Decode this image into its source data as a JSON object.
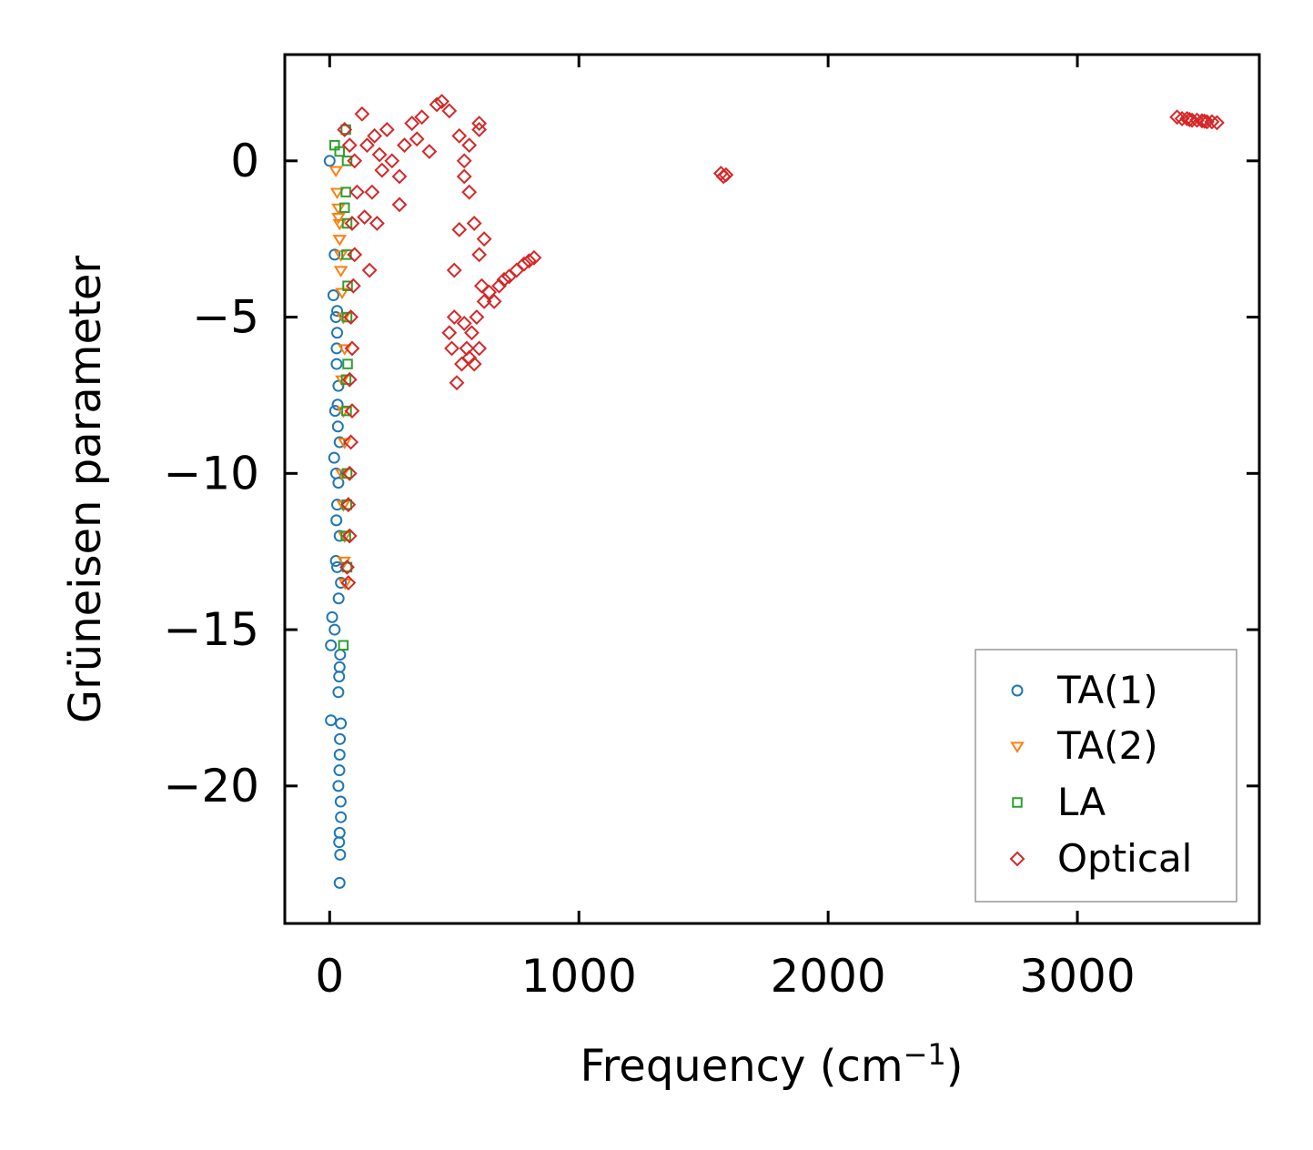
{
  "chart_data": {
    "type": "scatter",
    "title": "",
    "xlabel": "Frequency (cm",
    "xlabel_sup": "−1",
    "xlabel_close": ")",
    "ylabel": "Grüneisen parameter",
    "xlim": [
      -180,
      3730
    ],
    "ylim": [
      -24.4,
      3.4
    ],
    "xticks": [
      0,
      1000,
      2000,
      3000
    ],
    "xtick_labels": [
      "0",
      "1000",
      "2000",
      "3000"
    ],
    "yticks": [
      0,
      -5,
      -10,
      -15,
      -20
    ],
    "ytick_labels": [
      "0",
      "−5",
      "−10",
      "−15",
      "−20"
    ],
    "grid": false,
    "legend_position": "lower-right",
    "series": [
      {
        "name": "TA(1)",
        "color": "#1f77b4",
        "marker": "circle",
        "points": [
          [
            0,
            0
          ],
          [
            20,
            -3
          ],
          [
            15,
            -4.3
          ],
          [
            25,
            -5
          ],
          [
            30,
            -5.5
          ],
          [
            28,
            -6.5
          ],
          [
            35,
            -7.2
          ],
          [
            22,
            -8
          ],
          [
            40,
            -9
          ],
          [
            18,
            -9.5
          ],
          [
            35,
            -10.3
          ],
          [
            30,
            -11
          ],
          [
            40,
            -12
          ],
          [
            25,
            -12.8
          ],
          [
            45,
            -13.5
          ],
          [
            10,
            -14.6
          ],
          [
            20,
            -15
          ],
          [
            5,
            -15.5
          ],
          [
            40,
            -16.2
          ],
          [
            35,
            -17
          ],
          [
            45,
            -18
          ],
          [
            40,
            -19
          ],
          [
            35,
            -20
          ],
          [
            45,
            -21
          ],
          [
            40,
            -21.5
          ],
          [
            38,
            -21.8
          ],
          [
            42,
            -22.2
          ],
          [
            40,
            -23.1
          ],
          [
            5,
            -17.9
          ],
          [
            30,
            -4.8
          ],
          [
            28,
            -6
          ],
          [
            32,
            -7.8
          ],
          [
            26,
            -10
          ],
          [
            30,
            -13
          ],
          [
            36,
            -14
          ],
          [
            38,
            -16.5
          ],
          [
            41,
            -18.5
          ],
          [
            39,
            -19.5
          ],
          [
            44,
            -20.5
          ],
          [
            33,
            -8.5
          ],
          [
            27,
            -11.5
          ],
          [
            42,
            -15.8
          ]
        ]
      },
      {
        "name": "TA(2)",
        "color": "#ff7f0e",
        "marker": "triangle-down",
        "points": [
          [
            25,
            -0.3
          ],
          [
            30,
            -1
          ],
          [
            35,
            -1.8
          ],
          [
            40,
            -2.5
          ],
          [
            45,
            -3.5
          ],
          [
            50,
            -4.2
          ],
          [
            55,
            -5
          ],
          [
            60,
            -6
          ],
          [
            50,
            -7
          ],
          [
            55,
            -8
          ],
          [
            60,
            -9
          ],
          [
            50,
            -10
          ],
          [
            55,
            -11
          ],
          [
            60,
            -12
          ],
          [
            58,
            -12.8
          ],
          [
            62,
            -13.5
          ],
          [
            40,
            -2
          ],
          [
            45,
            -3
          ],
          [
            35,
            -1.5
          ]
        ]
      },
      {
        "name": "LA",
        "color": "#2ca02c",
        "marker": "square",
        "points": [
          [
            20,
            0.5
          ],
          [
            40,
            0.3
          ],
          [
            65,
            1
          ],
          [
            70,
            0
          ],
          [
            65,
            -1
          ],
          [
            70,
            -2
          ],
          [
            68,
            -3
          ],
          [
            70,
            -5
          ],
          [
            72,
            -6.5
          ],
          [
            68,
            -8
          ],
          [
            70,
            -10
          ],
          [
            65,
            -12
          ],
          [
            70,
            -13
          ],
          [
            55,
            -15.5
          ],
          [
            60,
            -1.5
          ],
          [
            72,
            -4
          ],
          [
            66,
            -7
          ],
          [
            69,
            -11
          ]
        ]
      },
      {
        "name": "Optical",
        "color": "#d62728",
        "marker": "diamond",
        "points": [
          [
            60,
            1
          ],
          [
            80,
            0.5
          ],
          [
            100,
            0
          ],
          [
            110,
            -1
          ],
          [
            90,
            -2
          ],
          [
            100,
            -3
          ],
          [
            95,
            -4
          ],
          [
            85,
            -5
          ],
          [
            90,
            -6
          ],
          [
            80,
            -7
          ],
          [
            90,
            -8
          ],
          [
            85,
            -9
          ],
          [
            80,
            -10
          ],
          [
            75,
            -11
          ],
          [
            80,
            -12
          ],
          [
            70,
            -13
          ],
          [
            75,
            -13.5
          ],
          [
            130,
            1.5
          ],
          [
            150,
            0.5
          ],
          [
            170,
            -1
          ],
          [
            180,
            0.8
          ],
          [
            200,
            0.2
          ],
          [
            230,
            1
          ],
          [
            250,
            0
          ],
          [
            280,
            -1.4
          ],
          [
            300,
            0.5
          ],
          [
            330,
            1.2
          ],
          [
            350,
            0.7
          ],
          [
            370,
            1.4
          ],
          [
            400,
            0.3
          ],
          [
            430,
            1.8
          ],
          [
            450,
            1.9
          ],
          [
            480,
            1.6
          ],
          [
            280,
            -0.5
          ],
          [
            210,
            -0.3
          ],
          [
            190,
            -2
          ],
          [
            160,
            -3.5
          ],
          [
            140,
            -1.8
          ],
          [
            520,
            0.8
          ],
          [
            540,
            0
          ],
          [
            560,
            -1
          ],
          [
            580,
            -2
          ],
          [
            600,
            1
          ],
          [
            600,
            -3
          ],
          [
            610,
            -4
          ],
          [
            620,
            -4.5
          ],
          [
            590,
            -5
          ],
          [
            570,
            -5.5
          ],
          [
            550,
            -6
          ],
          [
            530,
            -6.5
          ],
          [
            510,
            -7.1
          ],
          [
            490,
            -6
          ],
          [
            480,
            -5.5
          ],
          [
            500,
            -5
          ],
          [
            540,
            -5.2
          ],
          [
            560,
            -6.3
          ],
          [
            580,
            -6.5
          ],
          [
            600,
            -6
          ],
          [
            620,
            -2.5
          ],
          [
            640,
            -4.2
          ],
          [
            660,
            -4.5
          ],
          [
            680,
            -4
          ],
          [
            700,
            -3.8
          ],
          [
            720,
            -3.7
          ],
          [
            750,
            -3.5
          ],
          [
            780,
            -3.3
          ],
          [
            800,
            -3.2
          ],
          [
            820,
            -3.1
          ],
          [
            600,
            1.2
          ],
          [
            560,
            0.5
          ],
          [
            540,
            -0.5
          ],
          [
            520,
            -2.2
          ],
          [
            500,
            -3.5
          ],
          [
            1570,
            -0.4
          ],
          [
            1580,
            -0.5
          ],
          [
            1590,
            -0.45
          ],
          [
            3400,
            1.4
          ],
          [
            3420,
            1.35
          ],
          [
            3440,
            1.35
          ],
          [
            3460,
            1.3
          ],
          [
            3480,
            1.3
          ],
          [
            3500,
            1.28
          ],
          [
            3520,
            1.25
          ],
          [
            3540,
            1.25
          ],
          [
            3560,
            1.22
          ],
          [
            3450,
            1.32
          ],
          [
            3510,
            1.27
          ]
        ]
      }
    ]
  }
}
